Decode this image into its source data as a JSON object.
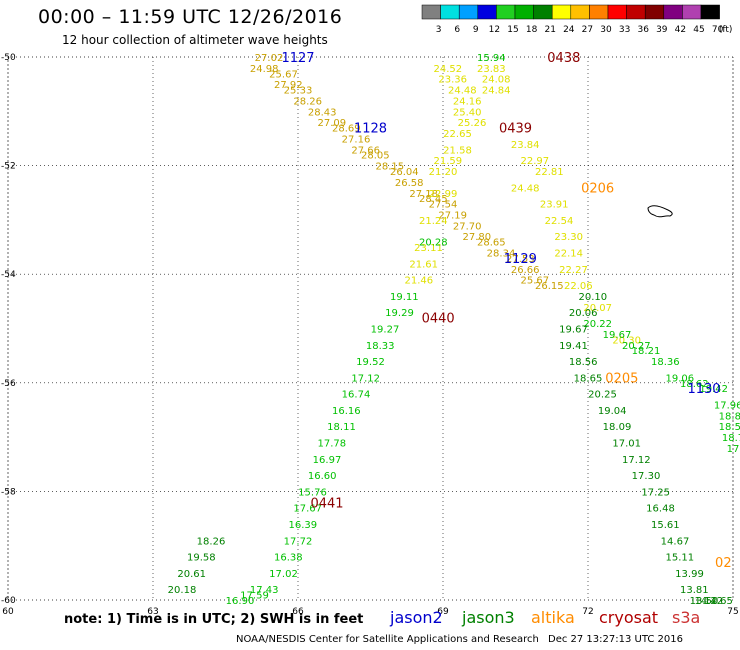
{
  "header": {
    "title": "00:00 – 11:59 UTC 12/26/2016",
    "subtitle": "12 hour collection of altimeter wave heights"
  },
  "colorbar": {
    "labels": [
      "3",
      "6",
      "9",
      "12",
      "15",
      "18",
      "21",
      "24",
      "27",
      "30",
      "33",
      "36",
      "39",
      "42",
      "45",
      "70",
      "(ft)"
    ],
    "colors": [
      "#808080",
      "#00e0e0",
      "#00a0ff",
      "#0000e0",
      "#20d020",
      "#00b000",
      "#008000",
      "#ffff00",
      "#ffc000",
      "#ff8000",
      "#ff0000",
      "#c00000",
      "#800000",
      "#800080",
      "#b040b0",
      "#000000"
    ]
  },
  "footer": {
    "note": "note:  1) Time is in UTC;  2) SWH is in feet",
    "credit": "NOAA/NESDIS Center for Satellite Applications and Research",
    "generated": "Dec 27 13:27:13 UTC 2016"
  },
  "legend": [
    {
      "name": "jason2",
      "color": "#0000cc"
    },
    {
      "name": "jason3",
      "color": "#008000"
    },
    {
      "name": "altika",
      "color": "#ff8c00"
    },
    {
      "name": "cryosat",
      "color": "#b00000"
    },
    {
      "name": "s3a",
      "color": "#cc3333"
    }
  ],
  "axes": {
    "lon_ticks": [
      "60",
      "63",
      "66",
      "69",
      "72",
      "75"
    ],
    "lat_ticks": [
      "-50",
      "-52",
      "-54",
      "-56",
      "-58",
      "-60"
    ]
  },
  "chart_data": {
    "type": "scatter",
    "xlim": [
      60,
      75
    ],
    "ylim": [
      -60,
      -50
    ],
    "xlabel": "",
    "ylabel": "",
    "grid": true,
    "pass_labels": [
      {
        "text": "1127",
        "lon": 66.0,
        "lat": -50.0,
        "color": "#0000cc"
      },
      {
        "text": "1128",
        "lon": 67.5,
        "lat": -51.3,
        "color": "#0000cc"
      },
      {
        "text": "1129",
        "lon": 70.6,
        "lat": -53.7,
        "color": "#0000cc"
      },
      {
        "text": "1130",
        "lon": 74.4,
        "lat": -56.1,
        "color": "#0000cc"
      },
      {
        "text": "0438",
        "lon": 71.5,
        "lat": -50.0,
        "color": "#8b0000"
      },
      {
        "text": "0439",
        "lon": 70.5,
        "lat": -51.3,
        "color": "#8b0000"
      },
      {
        "text": "0440",
        "lon": 68.9,
        "lat": -54.8,
        "color": "#8b0000"
      },
      {
        "text": "0441",
        "lon": 66.6,
        "lat": -58.2,
        "color": "#8b0000"
      },
      {
        "text": "0206",
        "lon": 72.2,
        "lat": -52.4,
        "color": "#ff8c00"
      },
      {
        "text": "0205",
        "lon": 72.7,
        "lat": -55.9,
        "color": "#ff8c00"
      },
      {
        "text": "02",
        "lon": 74.8,
        "lat": -59.3,
        "color": "#ff8c00"
      }
    ],
    "series": [
      {
        "color": "#c8a000",
        "points": [
          [
            65.4,
            -50.0,
            "27.02"
          ],
          [
            65.3,
            -50.2,
            "24.98"
          ],
          [
            65.7,
            -50.3,
            "25.67"
          ],
          [
            65.8,
            -50.5,
            "27.92"
          ],
          [
            66.0,
            -50.6,
            "25.33"
          ],
          [
            66.2,
            -50.8,
            "28.26"
          ],
          [
            66.5,
            -51.0,
            "28.43"
          ],
          [
            66.7,
            -51.2,
            "27.09"
          ],
          [
            67.0,
            -51.3,
            "28.69"
          ],
          [
            67.2,
            -51.5,
            "27.16"
          ],
          [
            67.4,
            -51.7,
            "27.66"
          ],
          [
            67.6,
            -51.8,
            "28.05"
          ],
          [
            67.9,
            -52.0,
            "28.15"
          ],
          [
            68.2,
            -52.1,
            "26.04"
          ],
          [
            68.3,
            -52.3,
            "26.58"
          ],
          [
            68.6,
            -52.5,
            "27.18"
          ],
          [
            68.8,
            -52.6,
            "28.45"
          ],
          [
            69.0,
            -52.7,
            "27.54"
          ],
          [
            69.2,
            -52.9,
            "27.19"
          ],
          [
            69.5,
            -53.1,
            "27.70"
          ],
          [
            69.7,
            -53.3,
            "27.80"
          ],
          [
            70.0,
            -53.4,
            "28.65"
          ],
          [
            70.2,
            -53.6,
            "28.34"
          ],
          [
            70.6,
            -53.7,
            "27.53"
          ],
          [
            70.7,
            -53.9,
            "26.66"
          ],
          [
            70.9,
            -54.1,
            "25.67"
          ],
          [
            71.2,
            -54.2,
            "26.15"
          ]
        ]
      },
      {
        "color": "#e0e000",
        "points": [
          [
            69.1,
            -50.2,
            "24.52"
          ],
          [
            69.2,
            -50.4,
            "23.36"
          ],
          [
            69.4,
            -50.6,
            "24.48"
          ],
          [
            69.5,
            -50.8,
            "24.16"
          ],
          [
            69.5,
            -51.0,
            "25.40"
          ],
          [
            69.6,
            -51.2,
            "25.26"
          ],
          [
            69.3,
            -51.4,
            "22.65"
          ],
          [
            69.3,
            -51.7,
            "21.58"
          ],
          [
            69.1,
            -51.9,
            "21.59"
          ],
          [
            69.0,
            -52.1,
            "21.20"
          ],
          [
            69.0,
            -52.5,
            "22.99"
          ],
          [
            68.8,
            -53.0,
            "21.24"
          ],
          [
            68.7,
            -53.5,
            "23.11"
          ],
          [
            68.6,
            -53.8,
            "21.61"
          ],
          [
            68.5,
            -54.1,
            "21.46"
          ],
          [
            70.0,
            -50.2,
            "23.83"
          ],
          [
            70.1,
            -50.4,
            "24.08"
          ],
          [
            70.1,
            -50.6,
            "24.84"
          ],
          [
            70.7,
            -51.6,
            "23.84"
          ],
          [
            70.9,
            -51.9,
            "22.97"
          ],
          [
            71.2,
            -52.1,
            "22.81"
          ],
          [
            70.7,
            -52.4,
            "24.48"
          ],
          [
            71.3,
            -52.7,
            "23.91"
          ],
          [
            71.4,
            -53.0,
            "22.54"
          ],
          [
            71.6,
            -53.3,
            "23.30"
          ],
          [
            71.6,
            -53.6,
            "22.14"
          ],
          [
            71.7,
            -53.9,
            "22.27"
          ],
          [
            71.8,
            -54.2,
            "22.06"
          ],
          [
            72.2,
            -54.6,
            "20.07"
          ],
          [
            72.8,
            -55.2,
            "20.30"
          ]
        ]
      },
      {
        "color": "#00c000",
        "points": [
          [
            70.0,
            -50.0,
            "15.94"
          ],
          [
            68.8,
            -53.4,
            "20.28"
          ],
          [
            68.2,
            -54.4,
            "19.11"
          ],
          [
            68.1,
            -54.7,
            "19.29"
          ],
          [
            67.8,
            -55.0,
            "19.27"
          ],
          [
            67.7,
            -55.3,
            "18.33"
          ],
          [
            67.5,
            -55.6,
            "19.52"
          ],
          [
            67.4,
            -55.9,
            "17.12"
          ],
          [
            67.2,
            -56.2,
            "16.74"
          ],
          [
            67.0,
            -56.5,
            "16.16"
          ],
          [
            66.9,
            -56.8,
            "18.11"
          ],
          [
            66.7,
            -57.1,
            "17.78"
          ],
          [
            66.6,
            -57.4,
            "16.97"
          ],
          [
            66.5,
            -57.7,
            "16.60"
          ],
          [
            66.3,
            -58.0,
            "15.76"
          ],
          [
            66.2,
            -58.3,
            "17.67"
          ],
          [
            66.1,
            -58.6,
            "16.39"
          ],
          [
            66.0,
            -58.9,
            "17.72"
          ],
          [
            65.8,
            -59.2,
            "16.38"
          ],
          [
            65.7,
            -59.5,
            "17.02"
          ],
          [
            65.3,
            -59.8,
            "17.43"
          ],
          [
            65.1,
            -59.9,
            "17.59"
          ],
          [
            64.8,
            -60.0,
            "16.90"
          ],
          [
            72.2,
            -54.9,
            "20.22"
          ],
          [
            72.6,
            -55.1,
            "19.67"
          ],
          [
            73.0,
            -55.3,
            "20.27"
          ],
          [
            73.2,
            -55.4,
            "18.21"
          ],
          [
            73.6,
            -55.6,
            "18.36"
          ],
          [
            73.9,
            -55.9,
            "19.06"
          ],
          [
            74.2,
            -56.0,
            "18.62"
          ],
          [
            74.6,
            -56.1,
            "19.42"
          ],
          [
            74.9,
            -56.4,
            "17.96"
          ],
          [
            75.0,
            -56.6,
            "18.81"
          ],
          [
            75.0,
            -56.8,
            "18.56"
          ],
          [
            75.0,
            -57.0,
            "18.7"
          ],
          [
            75.0,
            -57.2,
            "17"
          ]
        ]
      },
      {
        "color": "#008000",
        "points": [
          [
            72.1,
            -54.4,
            "20.10"
          ],
          [
            71.9,
            -54.7,
            "20.06"
          ],
          [
            71.7,
            -55.0,
            "19.67"
          ],
          [
            71.7,
            -55.3,
            "19.41"
          ],
          [
            71.9,
            -55.6,
            "18.56"
          ],
          [
            72.0,
            -55.9,
            "18.65"
          ],
          [
            72.3,
            -56.2,
            "20.25"
          ],
          [
            72.5,
            -56.5,
            "19.04"
          ],
          [
            72.6,
            -56.8,
            "18.09"
          ],
          [
            72.8,
            -57.1,
            "17.01"
          ],
          [
            73.0,
            -57.4,
            "17.12"
          ],
          [
            73.2,
            -57.7,
            "17.30"
          ],
          [
            73.4,
            -58.0,
            "17.25"
          ],
          [
            73.5,
            -58.3,
            "16.48"
          ],
          [
            73.6,
            -58.6,
            "15.61"
          ],
          [
            73.8,
            -58.9,
            "14.67"
          ],
          [
            73.9,
            -59.2,
            "15.11"
          ],
          [
            74.1,
            -59.5,
            "13.99"
          ],
          [
            74.2,
            -59.8,
            "13.81"
          ],
          [
            74.4,
            -60.0,
            "13.50"
          ],
          [
            74.5,
            -60.0,
            "14.22"
          ],
          [
            74.7,
            -60.0,
            "14.65"
          ],
          [
            64.2,
            -58.9,
            "18.26"
          ],
          [
            64.0,
            -59.2,
            "19.58"
          ],
          [
            63.8,
            -59.5,
            "20.61"
          ],
          [
            63.6,
            -59.8,
            "20.18"
          ]
        ]
      }
    ]
  }
}
